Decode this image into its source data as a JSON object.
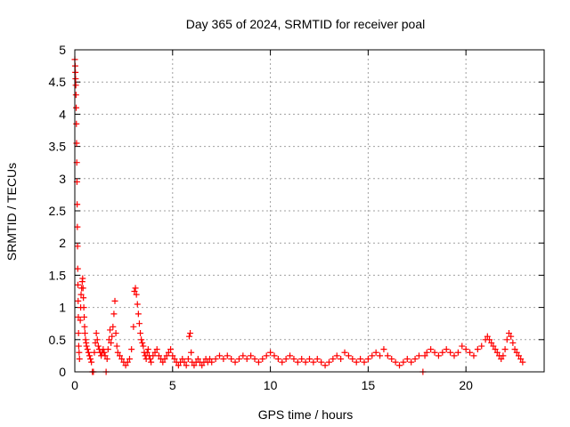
{
  "chart_data": {
    "type": "scatter",
    "title": "Day 365 of 2024, SRMTID for receiver poal",
    "xlabel": "GPS time / hours",
    "ylabel": "SRMTID / TECUs",
    "xlim": [
      0,
      24
    ],
    "ylim": [
      0,
      5
    ],
    "x_ticks": [
      0,
      5,
      10,
      15,
      20
    ],
    "x_tick_labels": [
      "0",
      "5",
      "10",
      "15",
      "20"
    ],
    "y_ticks": [
      0,
      0.5,
      1,
      1.5,
      2,
      2.5,
      3,
      3.5,
      4,
      4.5,
      5
    ],
    "y_tick_labels": [
      "0",
      "0.5",
      "1",
      "1.5",
      "2",
      "2.5",
      "3",
      "3.5",
      "4",
      "4.5",
      "5"
    ],
    "grid": true,
    "marker": "+",
    "series": [
      {
        "name": "SRMTID",
        "color": "#ff0000",
        "points": [
          [
            0.0,
            4.85
          ],
          [
            0.02,
            4.75
          ],
          [
            0.03,
            4.65
          ],
          [
            0.04,
            4.55
          ],
          [
            0.05,
            4.45
          ],
          [
            0.06,
            4.3
          ],
          [
            0.07,
            4.1
          ],
          [
            0.08,
            3.85
          ],
          [
            0.09,
            3.55
          ],
          [
            0.1,
            3.25
          ],
          [
            0.11,
            2.95
          ],
          [
            0.12,
            2.6
          ],
          [
            0.13,
            2.25
          ],
          [
            0.14,
            1.95
          ],
          [
            0.15,
            1.6
          ],
          [
            0.16,
            1.35
          ],
          [
            0.17,
            1.1
          ],
          [
            0.18,
            0.85
          ],
          [
            0.19,
            0.6
          ],
          [
            0.2,
            0.4
          ],
          [
            0.22,
            0.3
          ],
          [
            0.24,
            0.2
          ],
          [
            0.28,
            0.8
          ],
          [
            0.3,
            1.0
          ],
          [
            0.32,
            1.2
          ],
          [
            0.35,
            1.3
          ],
          [
            0.38,
            1.4
          ],
          [
            0.4,
            1.45
          ],
          [
            0.42,
            1.3
          ],
          [
            0.44,
            1.15
          ],
          [
            0.46,
            1.0
          ],
          [
            0.48,
            0.85
          ],
          [
            0.5,
            0.7
          ],
          [
            0.52,
            0.6
          ],
          [
            0.55,
            0.5
          ],
          [
            0.58,
            0.45
          ],
          [
            0.6,
            0.4
          ],
          [
            0.65,
            0.35
          ],
          [
            0.7,
            0.3
          ],
          [
            0.75,
            0.25
          ],
          [
            0.8,
            0.2
          ],
          [
            0.85,
            0.15
          ],
          [
            0.9,
            0.0
          ],
          [
            0.95,
            0.0
          ],
          [
            1.0,
            0.3
          ],
          [
            1.05,
            0.45
          ],
          [
            1.1,
            0.6
          ],
          [
            1.15,
            0.5
          ],
          [
            1.2,
            0.4
          ],
          [
            1.25,
            0.35
          ],
          [
            1.3,
            0.3
          ],
          [
            1.35,
            0.25
          ],
          [
            1.4,
            0.3
          ],
          [
            1.45,
            0.35
          ],
          [
            1.5,
            0.3
          ],
          [
            1.55,
            0.25
          ],
          [
            1.6,
            0.0
          ],
          [
            1.65,
            0.2
          ],
          [
            1.7,
            0.35
          ],
          [
            1.75,
            0.5
          ],
          [
            1.8,
            0.65
          ],
          [
            1.85,
            0.45
          ],
          [
            1.9,
            0.55
          ],
          [
            1.95,
            0.7
          ],
          [
            2.0,
            0.9
          ],
          [
            2.05,
            1.1
          ],
          [
            2.1,
            0.6
          ],
          [
            2.15,
            0.4
          ],
          [
            2.2,
            0.3
          ],
          [
            2.3,
            0.25
          ],
          [
            2.4,
            0.2
          ],
          [
            2.5,
            0.15
          ],
          [
            2.6,
            0.1
          ],
          [
            2.7,
            0.15
          ],
          [
            2.8,
            0.2
          ],
          [
            2.9,
            0.35
          ],
          [
            3.0,
            0.7
          ],
          [
            3.05,
            1.25
          ],
          [
            3.1,
            1.3
          ],
          [
            3.15,
            1.2
          ],
          [
            3.2,
            1.05
          ],
          [
            3.25,
            0.9
          ],
          [
            3.3,
            0.75
          ],
          [
            3.35,
            0.6
          ],
          [
            3.4,
            0.5
          ],
          [
            3.45,
            0.45
          ],
          [
            3.5,
            0.4
          ],
          [
            3.55,
            0.3
          ],
          [
            3.6,
            0.25
          ],
          [
            3.65,
            0.2
          ],
          [
            3.7,
            0.3
          ],
          [
            3.75,
            0.35
          ],
          [
            3.8,
            0.25
          ],
          [
            3.85,
            0.2
          ],
          [
            3.9,
            0.15
          ],
          [
            4.0,
            0.25
          ],
          [
            4.1,
            0.3
          ],
          [
            4.2,
            0.35
          ],
          [
            4.3,
            0.25
          ],
          [
            4.4,
            0.2
          ],
          [
            4.5,
            0.15
          ],
          [
            4.6,
            0.2
          ],
          [
            4.7,
            0.25
          ],
          [
            4.8,
            0.3
          ],
          [
            4.9,
            0.35
          ],
          [
            5.0,
            0.25
          ],
          [
            5.1,
            0.2
          ],
          [
            5.2,
            0.15
          ],
          [
            5.3,
            0.1
          ],
          [
            5.4,
            0.15
          ],
          [
            5.5,
            0.2
          ],
          [
            5.6,
            0.15
          ],
          [
            5.7,
            0.1
          ],
          [
            5.8,
            0.2
          ],
          [
            5.85,
            0.55
          ],
          [
            5.9,
            0.6
          ],
          [
            5.95,
            0.3
          ],
          [
            6.0,
            0.15
          ],
          [
            6.1,
            0.1
          ],
          [
            6.2,
            0.15
          ],
          [
            6.3,
            0.2
          ],
          [
            6.4,
            0.15
          ],
          [
            6.5,
            0.1
          ],
          [
            6.6,
            0.15
          ],
          [
            6.7,
            0.2
          ],
          [
            6.8,
            0.15
          ],
          [
            6.9,
            0.2
          ],
          [
            7.0,
            0.15
          ],
          [
            7.2,
            0.2
          ],
          [
            7.4,
            0.25
          ],
          [
            7.6,
            0.2
          ],
          [
            7.8,
            0.25
          ],
          [
            8.0,
            0.2
          ],
          [
            8.2,
            0.15
          ],
          [
            8.4,
            0.2
          ],
          [
            8.6,
            0.25
          ],
          [
            8.8,
            0.2
          ],
          [
            9.0,
            0.25
          ],
          [
            9.2,
            0.2
          ],
          [
            9.4,
            0.15
          ],
          [
            9.6,
            0.2
          ],
          [
            9.8,
            0.25
          ],
          [
            10.0,
            0.3
          ],
          [
            10.2,
            0.25
          ],
          [
            10.4,
            0.2
          ],
          [
            10.6,
            0.15
          ],
          [
            10.8,
            0.2
          ],
          [
            11.0,
            0.25
          ],
          [
            11.2,
            0.2
          ],
          [
            11.4,
            0.15
          ],
          [
            11.6,
            0.2
          ],
          [
            11.8,
            0.15
          ],
          [
            12.0,
            0.2
          ],
          [
            12.2,
            0.15
          ],
          [
            12.4,
            0.2
          ],
          [
            12.6,
            0.15
          ],
          [
            12.8,
            0.1
          ],
          [
            13.0,
            0.15
          ],
          [
            13.2,
            0.2
          ],
          [
            13.4,
            0.25
          ],
          [
            13.6,
            0.2
          ],
          [
            13.8,
            0.3
          ],
          [
            14.0,
            0.25
          ],
          [
            14.2,
            0.2
          ],
          [
            14.4,
            0.15
          ],
          [
            14.6,
            0.2
          ],
          [
            14.8,
            0.15
          ],
          [
            15.0,
            0.2
          ],
          [
            15.2,
            0.25
          ],
          [
            15.4,
            0.3
          ],
          [
            15.6,
            0.25
          ],
          [
            15.8,
            0.35
          ],
          [
            16.0,
            0.25
          ],
          [
            16.2,
            0.2
          ],
          [
            16.4,
            0.15
          ],
          [
            16.6,
            0.1
          ],
          [
            16.8,
            0.15
          ],
          [
            17.0,
            0.2
          ],
          [
            17.2,
            0.15
          ],
          [
            17.4,
            0.2
          ],
          [
            17.6,
            0.25
          ],
          [
            17.8,
            0.0
          ],
          [
            17.9,
            0.25
          ],
          [
            18.0,
            0.3
          ],
          [
            18.2,
            0.35
          ],
          [
            18.4,
            0.3
          ],
          [
            18.6,
            0.25
          ],
          [
            18.8,
            0.3
          ],
          [
            19.0,
            0.35
          ],
          [
            19.2,
            0.3
          ],
          [
            19.4,
            0.25
          ],
          [
            19.6,
            0.3
          ],
          [
            19.8,
            0.4
          ],
          [
            20.0,
            0.35
          ],
          [
            20.2,
            0.3
          ],
          [
            20.4,
            0.25
          ],
          [
            20.6,
            0.35
          ],
          [
            20.8,
            0.4
          ],
          [
            21.0,
            0.5
          ],
          [
            21.1,
            0.55
          ],
          [
            21.2,
            0.5
          ],
          [
            21.3,
            0.45
          ],
          [
            21.4,
            0.4
          ],
          [
            21.5,
            0.35
          ],
          [
            21.6,
            0.3
          ],
          [
            21.7,
            0.25
          ],
          [
            21.8,
            0.2
          ],
          [
            21.9,
            0.25
          ],
          [
            22.0,
            0.35
          ],
          [
            22.1,
            0.5
          ],
          [
            22.2,
            0.6
          ],
          [
            22.3,
            0.55
          ],
          [
            22.4,
            0.45
          ],
          [
            22.5,
            0.35
          ],
          [
            22.6,
            0.3
          ],
          [
            22.7,
            0.25
          ],
          [
            22.8,
            0.2
          ],
          [
            22.9,
            0.15
          ]
        ]
      }
    ]
  }
}
